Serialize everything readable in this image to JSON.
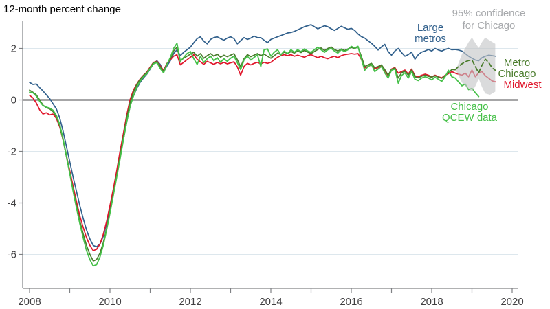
{
  "header": {
    "title": "12-month percent change"
  },
  "colors": {
    "large_metros": "#31608c",
    "midwest": "#e0162b",
    "metro_chicago": "#4a7c2c",
    "chicago_qcew": "#45c048",
    "confidence_band": "#c4c5c7",
    "confidence_text": "#a7a9ac",
    "gridline": "#dde7ed",
    "axis": "#808285",
    "zero_line": "#4d4d4f",
    "tick_text": "#414042"
  },
  "annotations": {
    "confidence": {
      "line1": "95% confidence",
      "line2": "for Chicago"
    },
    "large_metros": {
      "line1": "Large",
      "line2": "metros"
    },
    "metro_chicago": {
      "line1": "Metro",
      "line2": "Chicago"
    },
    "midwest": {
      "line1": "Midwest"
    },
    "qcew": {
      "line1": "Chicago",
      "line2": "QCEW data"
    }
  },
  "chart_data": {
    "type": "line",
    "title": "12-month percent change",
    "xlabel": "",
    "ylabel": "12-month percent change",
    "xlim": [
      2008,
      2020.15
    ],
    "ylim": [
      -7.3,
      3.1
    ],
    "grid": "horizontal-only",
    "x_ticks_every_year": [
      2008,
      2009,
      2010,
      2011,
      2012,
      2013,
      2014,
      2015,
      2016,
      2017,
      2018,
      2019,
      2020
    ],
    "x_label_years": [
      2008,
      2010,
      2012,
      2014,
      2016,
      2018,
      2020
    ],
    "y_ticks": [
      2,
      0,
      -2,
      -4,
      -6
    ],
    "gridline_values": [
      2,
      -2,
      -4,
      -6
    ],
    "zero_line_value": 0,
    "series": [
      {
        "name": "Large metros",
        "color": "#31608c",
        "dash": null,
        "width": 1.7,
        "start": 2008.0,
        "step_months": 1,
        "values": [
          0.68,
          0.6,
          0.62,
          0.48,
          0.35,
          0.2,
          0.05,
          -0.15,
          -0.35,
          -0.7,
          -1.2,
          -1.8,
          -2.4,
          -3.0,
          -3.55,
          -4.1,
          -4.6,
          -5.05,
          -5.4,
          -5.65,
          -5.7,
          -5.6,
          -5.3,
          -4.8,
          -4.2,
          -3.6,
          -2.95,
          -2.25,
          -1.55,
          -0.85,
          -0.25,
          0.15,
          0.45,
          0.68,
          0.85,
          1.0,
          1.2,
          1.42,
          1.52,
          1.38,
          1.08,
          1.32,
          1.52,
          1.8,
          1.95,
          1.72,
          1.85,
          1.95,
          2.05,
          2.22,
          2.38,
          2.45,
          2.28,
          2.18,
          2.35,
          2.42,
          2.45,
          2.38,
          2.32,
          2.4,
          2.45,
          2.38,
          2.18,
          2.3,
          2.42,
          2.35,
          2.4,
          2.48,
          2.42,
          2.42,
          2.32,
          2.22,
          2.35,
          2.4,
          2.45,
          2.5,
          2.55,
          2.6,
          2.62,
          2.66,
          2.72,
          2.78,
          2.84,
          2.88,
          2.92,
          2.84,
          2.76,
          2.82,
          2.88,
          2.84,
          2.76,
          2.7,
          2.78,
          2.86,
          2.8,
          2.74,
          2.78,
          2.7,
          2.56,
          2.46,
          2.4,
          2.3,
          2.2,
          2.08,
          1.94,
          2.06,
          2.16,
          1.88,
          1.74,
          1.9,
          2.0,
          1.84,
          1.7,
          1.76,
          1.86,
          1.58,
          1.76,
          1.86,
          1.9,
          1.96,
          1.9,
          2.0,
          1.94,
          1.9,
          1.96,
          2.0,
          1.95,
          1.96,
          1.94,
          1.9,
          1.8,
          1.7,
          1.62,
          1.55,
          1.52,
          1.64,
          1.7,
          1.74,
          1.72,
          1.7
        ]
      },
      {
        "name": "Midwest",
        "color": "#e0162b",
        "dash": null,
        "width": 1.7,
        "start": 2008.0,
        "step_months": 1,
        "values": [
          0.18,
          0.08,
          -0.12,
          -0.38,
          -0.55,
          -0.5,
          -0.58,
          -0.55,
          -0.72,
          -1.05,
          -1.55,
          -2.15,
          -2.75,
          -3.35,
          -3.95,
          -4.5,
          -4.95,
          -5.35,
          -5.65,
          -5.85,
          -5.8,
          -5.6,
          -5.22,
          -4.72,
          -4.1,
          -3.45,
          -2.75,
          -2.0,
          -1.3,
          -0.58,
          0.02,
          0.38,
          0.62,
          0.82,
          0.96,
          1.08,
          1.28,
          1.46,
          1.5,
          1.32,
          1.15,
          1.42,
          1.56,
          1.7,
          1.76,
          1.36,
          1.46,
          1.56,
          1.66,
          1.76,
          1.58,
          1.48,
          1.38,
          1.5,
          1.44,
          1.38,
          1.46,
          1.4,
          1.46,
          1.4,
          1.44,
          1.48,
          1.28,
          0.96,
          1.3,
          1.42,
          1.36,
          1.42,
          1.46,
          1.4,
          1.46,
          1.42,
          1.46,
          1.56,
          1.66,
          1.72,
          1.76,
          1.72,
          1.76,
          1.7,
          1.74,
          1.7,
          1.66,
          1.72,
          1.76,
          1.7,
          1.64,
          1.7,
          1.64,
          1.6,
          1.66,
          1.7,
          1.64,
          1.72,
          1.76,
          1.78,
          1.8,
          1.78,
          1.8,
          1.58,
          1.24,
          1.3,
          1.36,
          1.2,
          1.26,
          1.32,
          1.14,
          0.94,
          1.2,
          1.26,
          1.04,
          1.1,
          1.16,
          1.0,
          1.2,
          0.94,
          0.9,
          0.96,
          1.0,
          0.96,
          0.9,
          0.96,
          0.9,
          0.86,
          0.96,
          1.02,
          1.1,
          1.04,
          1.0,
          0.96,
          1.04,
          0.9,
          1.16,
          0.9,
          1.06,
          1.1,
          0.94,
          0.84,
          0.74,
          0.7
        ]
      },
      {
        "name": "Metro Chicago",
        "color": "#4a7c2c",
        "dash": null,
        "width": 1.7,
        "start": 2008.0,
        "step_months": 1,
        "values": [
          0.38,
          0.3,
          0.2,
          0.0,
          -0.2,
          -0.3,
          -0.35,
          -0.45,
          -0.65,
          -1.0,
          -1.55,
          -2.2,
          -2.85,
          -3.5,
          -4.1,
          -4.7,
          -5.2,
          -5.65,
          -6.0,
          -6.25,
          -6.2,
          -5.95,
          -5.55,
          -5.0,
          -4.35,
          -3.65,
          -2.95,
          -2.2,
          -1.45,
          -0.7,
          -0.1,
          0.3,
          0.6,
          0.8,
          0.95,
          1.05,
          1.25,
          1.45,
          1.48,
          1.28,
          1.1,
          1.4,
          1.6,
          1.9,
          2.05,
          1.52,
          1.62,
          1.7,
          1.78,
          1.85,
          1.7,
          1.8,
          1.62,
          1.72,
          1.8,
          1.7,
          1.78,
          1.66,
          1.74,
          1.68,
          1.74,
          1.8,
          1.56,
          1.28,
          1.6,
          1.76,
          1.68,
          1.74,
          1.8,
          1.72,
          1.78,
          1.7,
          1.62,
          1.72,
          1.82,
          1.76,
          1.86,
          1.8,
          1.88,
          1.82,
          1.9,
          1.84,
          1.92,
          1.86,
          1.8,
          1.88,
          1.96,
          2.02,
          1.92,
          2.0,
          2.06,
          1.96,
          1.9,
          1.98,
          1.92,
          1.98,
          2.04,
          2.0,
          2.06,
          1.7,
          1.3,
          1.36,
          1.42,
          1.25,
          1.3,
          1.36,
          1.18,
          0.96,
          1.18,
          1.24,
          0.85,
          1.05,
          1.12,
          0.96,
          1.16,
          0.9,
          0.86,
          0.92,
          0.96,
          0.92,
          0.88,
          0.94,
          0.88,
          0.84,
          0.94,
          1.06,
          1.18,
          1.17
        ]
      },
      {
        "name": "Metro Chicago projection",
        "color": "#4a7c2c",
        "dash": "6,4",
        "width": 1.8,
        "start": 2018.583,
        "step_months": 1,
        "values": [
          1.17,
          1.3,
          1.4,
          1.48,
          1.53,
          1.55,
          1.3,
          1.05,
          1.35,
          1.58,
          1.45,
          1.25,
          1.15
        ]
      },
      {
        "name": "Chicago QCEW data",
        "color": "#45c048",
        "dash": null,
        "width": 1.8,
        "start": 2008.0,
        "step_months": 1,
        "values": [
          0.3,
          0.28,
          0.15,
          -0.05,
          -0.22,
          -0.28,
          -0.32,
          -0.4,
          -0.6,
          -0.95,
          -1.5,
          -2.15,
          -2.85,
          -3.55,
          -4.2,
          -4.8,
          -5.35,
          -5.85,
          -6.2,
          -6.45,
          -6.4,
          -6.1,
          -5.65,
          -5.05,
          -4.4,
          -3.7,
          -3.0,
          -2.3,
          -1.55,
          -0.85,
          -0.25,
          0.15,
          0.5,
          0.72,
          0.9,
          1.02,
          1.22,
          1.4,
          1.45,
          1.22,
          1.05,
          1.38,
          1.65,
          2.0,
          2.2,
          1.5,
          1.65,
          1.8,
          1.88,
          1.6,
          1.38,
          1.7,
          1.45,
          1.6,
          1.7,
          1.52,
          1.64,
          1.46,
          1.6,
          1.5,
          1.62,
          1.7,
          1.44,
          1.18,
          1.55,
          1.7,
          1.55,
          1.65,
          1.75,
          1.3,
          1.95,
          1.98,
          1.7,
          1.85,
          1.95,
          1.75,
          1.9,
          1.8,
          1.95,
          1.85,
          1.95,
          1.88,
          1.98,
          1.9,
          1.85,
          1.95,
          2.05,
          1.95,
          1.85,
          1.95,
          2.0,
          1.9,
          1.82,
          1.95,
          1.88,
          1.95,
          2.08,
          2.02,
          2.08,
          1.6,
          1.15,
          1.3,
          1.38,
          1.1,
          1.2,
          1.3,
          1.05,
          0.85,
          1.15,
          1.2,
          0.65,
          0.95,
          1.05,
          0.85,
          1.1,
          0.8,
          0.75,
          0.85,
          0.9,
          0.85,
          0.78,
          0.88,
          0.8,
          0.72,
          0.9,
          1.15,
          0.9,
          0.85,
          0.7,
          0.55,
          0.62,
          0.4,
          0.45,
          0.28,
          0.13
        ]
      }
    ],
    "confidence_band": {
      "name": "95% confidence for Chicago",
      "color": "#c4c5c7",
      "opacity": 0.62,
      "points": [
        [
          2018.6,
          1.15
        ],
        [
          2018.75,
          1.78
        ],
        [
          2018.92,
          2.25
        ],
        [
          2019.0,
          2.42
        ],
        [
          2019.08,
          2.22
        ],
        [
          2019.17,
          2.02
        ],
        [
          2019.25,
          2.25
        ],
        [
          2019.33,
          2.42
        ],
        [
          2019.45,
          2.3
        ],
        [
          2019.58,
          2.18
        ],
        [
          2019.58,
          0.32
        ],
        [
          2019.45,
          0.2
        ],
        [
          2019.33,
          0.25
        ],
        [
          2019.25,
          0.5
        ],
        [
          2019.17,
          0.82
        ],
        [
          2019.08,
          0.52
        ],
        [
          2019.0,
          0.32
        ],
        [
          2018.92,
          0.42
        ],
        [
          2018.75,
          0.68
        ]
      ]
    },
    "legend_position": "annotations-on-chart"
  }
}
